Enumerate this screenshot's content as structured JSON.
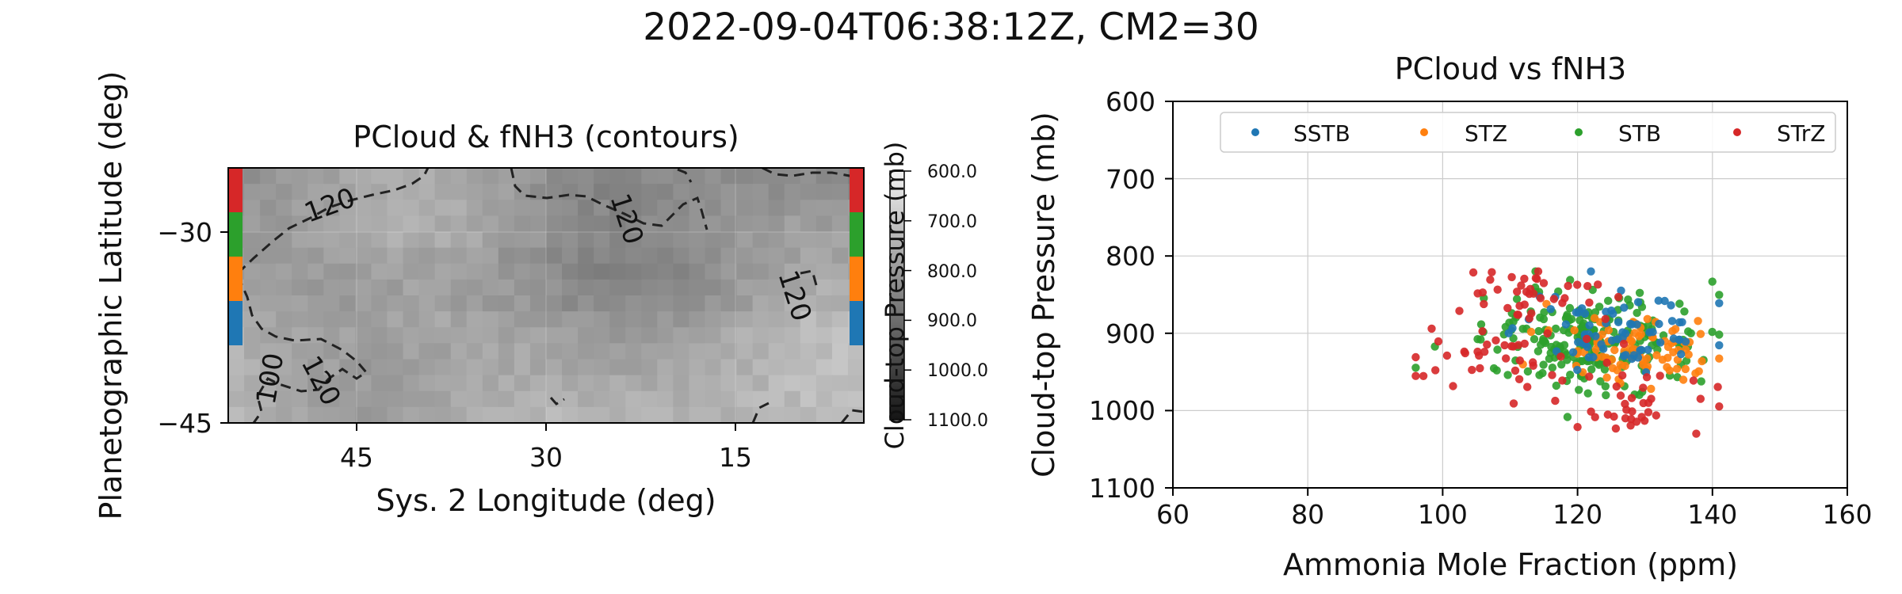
{
  "figure": {
    "suptitle": "2022-09-04T06:38:12Z, CM2=30"
  },
  "chart_data": [
    {
      "type": "heatmap",
      "title": "PCloud & fNH3 (contours)",
      "xlabel": "Sys. 2 Longitude (deg)",
      "ylabel": "Planetographic Latitude (deg)",
      "xlim": [
        60,
        0
      ],
      "ylim": [
        -45,
        -22
      ],
      "x_ticks": [
        "45",
        "30",
        "15"
      ],
      "y_ticks": [
        "−30",
        "−45"
      ],
      "grid": true,
      "colormap": "grayscale (dark = low pressure)",
      "colorbar": {
        "label": "Cloud-top Pressure (mb)",
        "ticks": [
          "600.0",
          "700.0",
          "800.0",
          "900.0",
          "1000.0",
          "1100.0"
        ],
        "range": [
          600,
          1100
        ]
      },
      "contour_labels": [
        "120",
        "120",
        "120",
        "100",
        "120"
      ],
      "band_markers": [
        {
          "band": "STrZ",
          "color": "#d62728"
        },
        {
          "band": "STB",
          "color": "#2ca02c"
        },
        {
          "band": "STZ",
          "color": "#ff7f0e"
        },
        {
          "band": "SSTB",
          "color": "#1f77b4"
        }
      ]
    },
    {
      "type": "scatter",
      "title": "PCloud vs fNH3",
      "xlabel": "Ammonia Mole Fraction (ppm)",
      "ylabel": "Cloud-top Pressure (mb)",
      "xlim": [
        60,
        160
      ],
      "ylim": [
        1100,
        600
      ],
      "x_ticks": [
        "60",
        "80",
        "100",
        "120",
        "140",
        "160"
      ],
      "y_ticks": [
        "600",
        "700",
        "800",
        "900",
        "1000",
        "1100"
      ],
      "grid": true,
      "legend_position": "top",
      "series": [
        {
          "name": "SSTB",
          "color": "#1f77b4",
          "center": [
            126,
            898
          ],
          "spread": [
            7,
            22
          ],
          "count": 70
        },
        {
          "name": "STZ",
          "color": "#ff7f0e",
          "center": [
            129,
            918
          ],
          "spread": [
            6,
            22
          ],
          "count": 90
        },
        {
          "name": "STB",
          "color": "#2ca02c",
          "center": [
            122,
            910
          ],
          "spread": [
            8,
            30
          ],
          "count": 230
        },
        {
          "name": "STrZ",
          "color": "#d62728",
          "center": [
            120,
            900
          ],
          "spread": [
            12,
            55
          ],
          "count": 110
        }
      ]
    }
  ]
}
